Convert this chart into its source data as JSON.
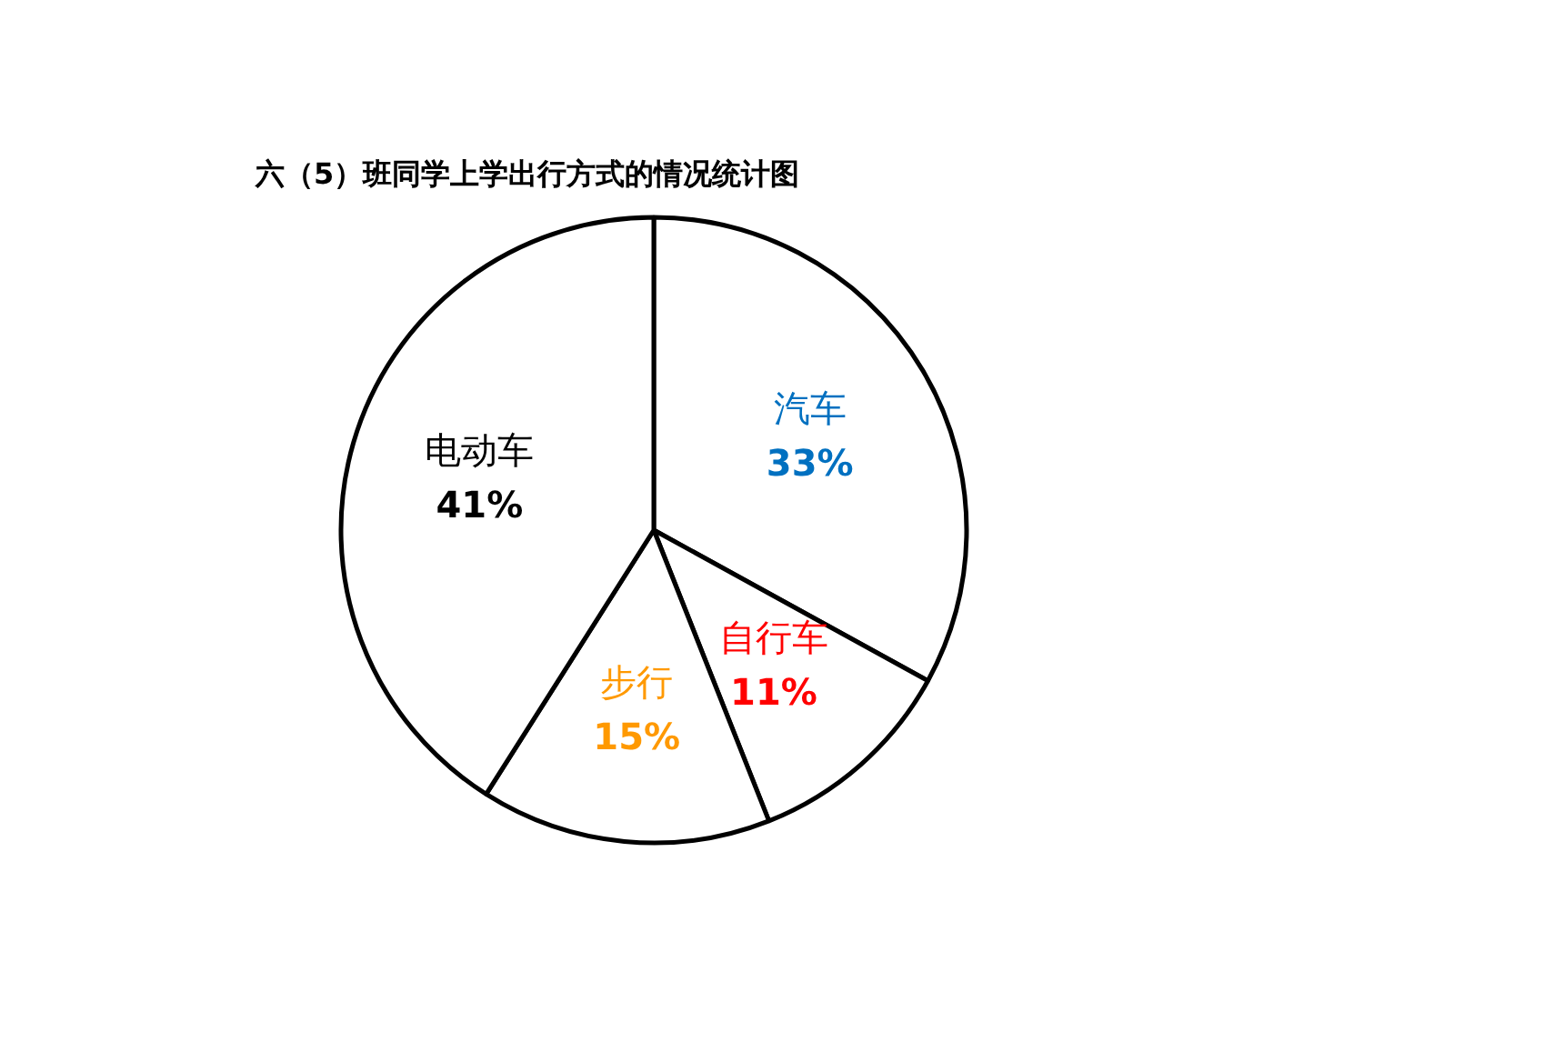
{
  "chart_data": {
    "type": "pie",
    "title": "六（5）班同学上学出行方式的情况统计图",
    "categories": [
      "汽车",
      "自行车",
      "步行",
      "电动车"
    ],
    "values": [
      33,
      11,
      15,
      41
    ],
    "colors": [
      "#ffffff",
      "#ffffff",
      "#ffffff",
      "#ffffff"
    ],
    "value_labels": [
      "33%",
      "11%",
      "15%",
      "41%"
    ]
  }
}
